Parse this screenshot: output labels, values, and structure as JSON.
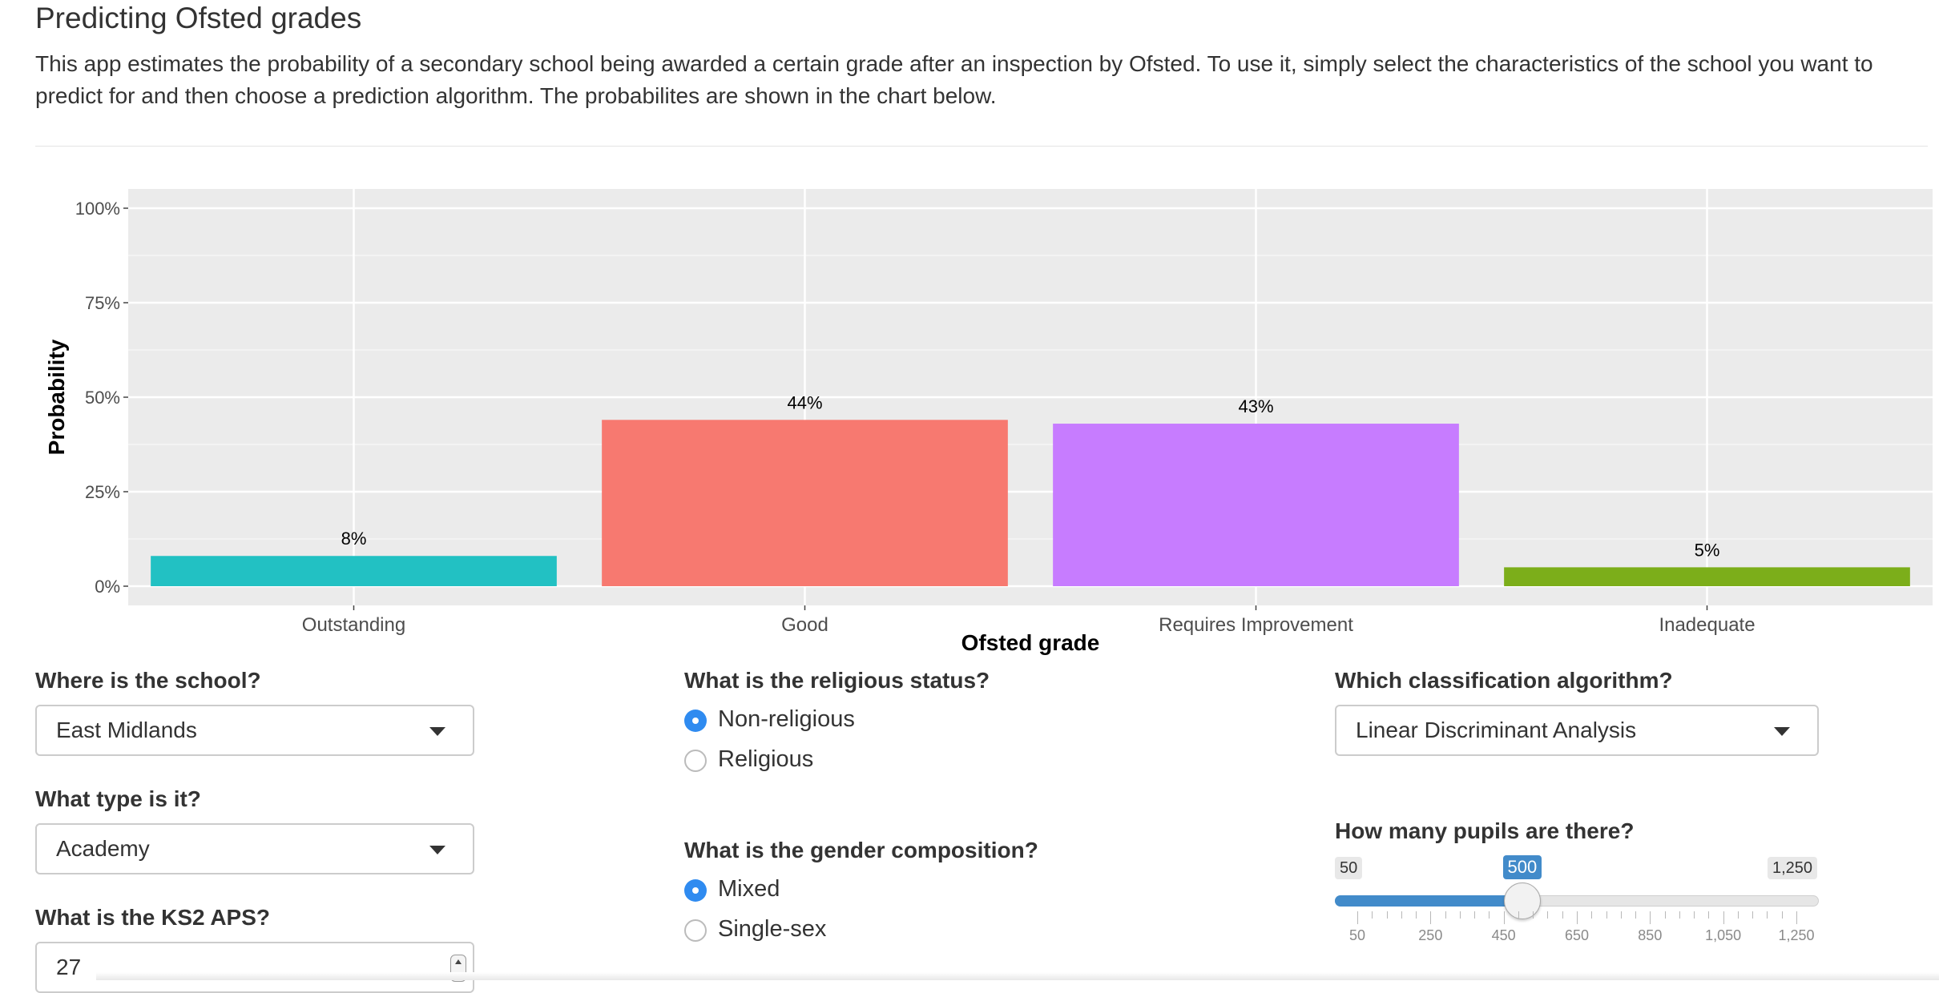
{
  "page": {
    "title": "Predicting Ofsted grades",
    "description_line1": "This app estimates the probability of a secondary school being awarded a certain grade after an inspection by Ofsted. To use it, simply select the characteristics of the school you want to",
    "description_line2": "predict for and then choose a prediction algorithm. The probabilites are shown in the chart below."
  },
  "chart_data": {
    "type": "bar",
    "categories": [
      "Outstanding",
      "Good",
      "Requires Improvement",
      "Inadequate"
    ],
    "values": [
      8,
      44,
      43,
      5
    ],
    "data_labels": [
      "8%",
      "44%",
      "43%",
      "5%"
    ],
    "colors": [
      "#22c1c3",
      "#f77970",
      "#c77cff",
      "#7cae1a"
    ],
    "xlabel": "Ofsted grade",
    "ylabel": "Probability",
    "ylim": [
      0,
      100
    ],
    "yticks": [
      0,
      25,
      50,
      75,
      100
    ],
    "ytick_labels": [
      "0%",
      "25%",
      "50%",
      "75%",
      "100%"
    ],
    "grid": true,
    "panel_background": "#ebebeb"
  },
  "controls": {
    "location": {
      "label": "Where is the school?",
      "value": "East Midlands"
    },
    "type": {
      "label": "What type is it?",
      "value": "Academy"
    },
    "ks2": {
      "label": "What is the KS2 APS?",
      "value": "27"
    },
    "religion": {
      "label": "What is the religious status?",
      "options": [
        "Non-religious",
        "Religious"
      ],
      "selected": "Non-religious"
    },
    "gender": {
      "label": "What is the gender composition?",
      "options": [
        "Mixed",
        "Single-sex"
      ],
      "selected": "Mixed"
    },
    "algorithm": {
      "label": "Which classification algorithm?",
      "value": "Linear Discriminant Analysis"
    },
    "pupils": {
      "label": "How many pupils are there?",
      "min": 50,
      "max": 1250,
      "value": 500,
      "min_label": "50",
      "max_label": "1,250",
      "value_label": "500",
      "tick_labels": [
        "50",
        "250",
        "450",
        "650",
        "850",
        "1,050",
        "1,250"
      ],
      "accent": "#428bca"
    }
  }
}
